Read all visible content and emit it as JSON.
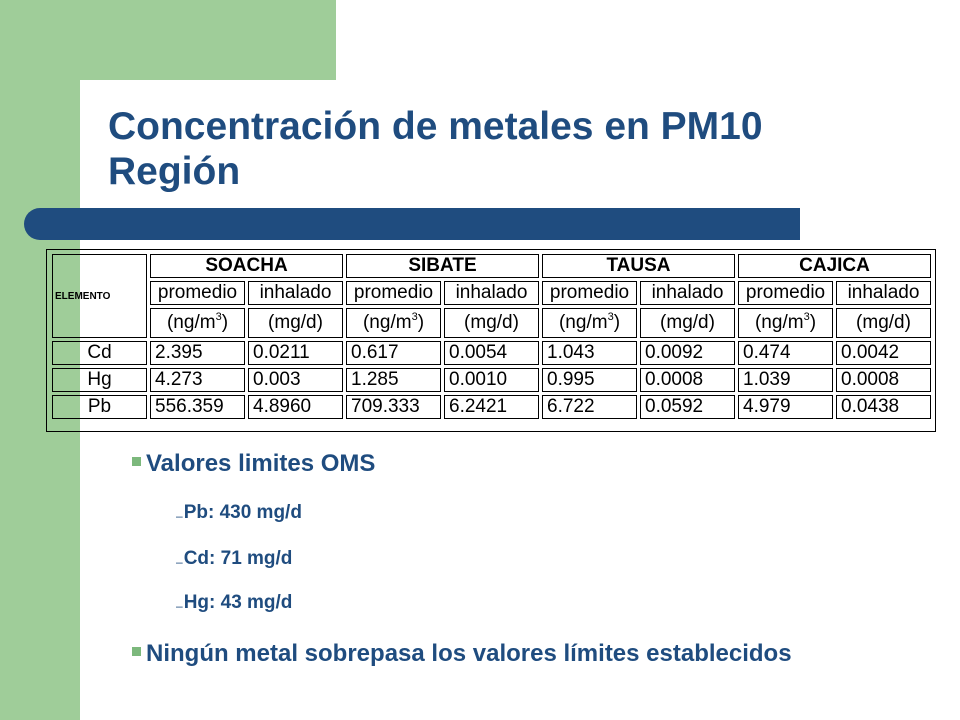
{
  "title": {
    "line1": "Concentración de metales en PM10",
    "line2": "Región"
  },
  "table": {
    "element_header": "ELEMENTO",
    "sites": [
      "SOACHA",
      "SIBATE",
      "TAUSA",
      "CAJICA"
    ],
    "measure_labels": [
      "promedio",
      "inhalado"
    ],
    "unit_labels": {
      "promedio_prefix": "(ng/m",
      "promedio_exp": "3",
      "promedio_suffix": ")",
      "inhalado": "(mg/d)"
    },
    "rows": [
      {
        "element": "Cd",
        "values": [
          "2.395",
          "0.0211",
          "0.617",
          "0.0054",
          "1.043",
          "0.0092",
          "0.474",
          "0.0042"
        ]
      },
      {
        "element": "Hg",
        "values": [
          "4.273",
          "0.003",
          "1.285",
          "0.0010",
          "0.995",
          "0.0008",
          "1.039",
          "0.0008"
        ]
      },
      {
        "element": "Pb",
        "values": [
          "556.359",
          "4.8960",
          "709.333",
          "6.2421",
          "6.722",
          "0.0592",
          "4.979",
          "0.0438"
        ]
      }
    ]
  },
  "bullets": {
    "oms_title": "Valores limites OMS",
    "oms_items": [
      "Pb: 430 mg/d",
      "Cd: 71 mg/d",
      "Hg: 43 mg/d"
    ],
    "conclusion": "Ningún metal sobrepasa los valores límites establecidos"
  },
  "colors": {
    "accent_green": "#9fcd99",
    "title_blue": "#1f4c7f",
    "bullet_green": "#7cb87c"
  }
}
